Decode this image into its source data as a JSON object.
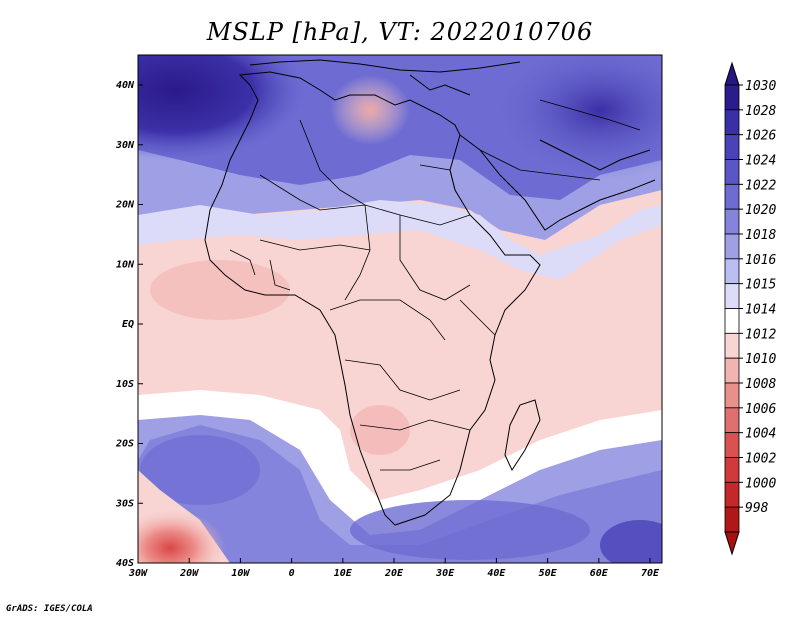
{
  "title": "MSLP [hPa], VT: 2022010706",
  "credit": "GrADS: IGES/COLA",
  "lat_ticks": [
    "40N",
    "30N",
    "20N",
    "10N",
    "EQ",
    "10S",
    "20S",
    "30S",
    "40S"
  ],
  "lon_ticks": [
    "30W",
    "20W",
    "10W",
    "0",
    "10E",
    "20E",
    "30E",
    "40E",
    "50E",
    "60E",
    "70E"
  ],
  "colorbar": {
    "labels": [
      "1030",
      "1028",
      "1026",
      "1024",
      "1022",
      "1020",
      "1018",
      "1016",
      "1015",
      "1014",
      "1012",
      "1010",
      "1008",
      "1006",
      "1004",
      "1002",
      "1000",
      "998"
    ],
    "colors": [
      "#2b1c8c",
      "#3a2fa6",
      "#4a42b8",
      "#5a56c6",
      "#6e6cd2",
      "#8584dc",
      "#9f9fe6",
      "#bcbdf0",
      "#dcdcf8",
      "#ffffff",
      "#f8d4d2",
      "#f2b4b0",
      "#e8908c",
      "#e07070",
      "#d85252",
      "#d03a3a",
      "#c42828",
      "#b01818"
    ]
  }
}
